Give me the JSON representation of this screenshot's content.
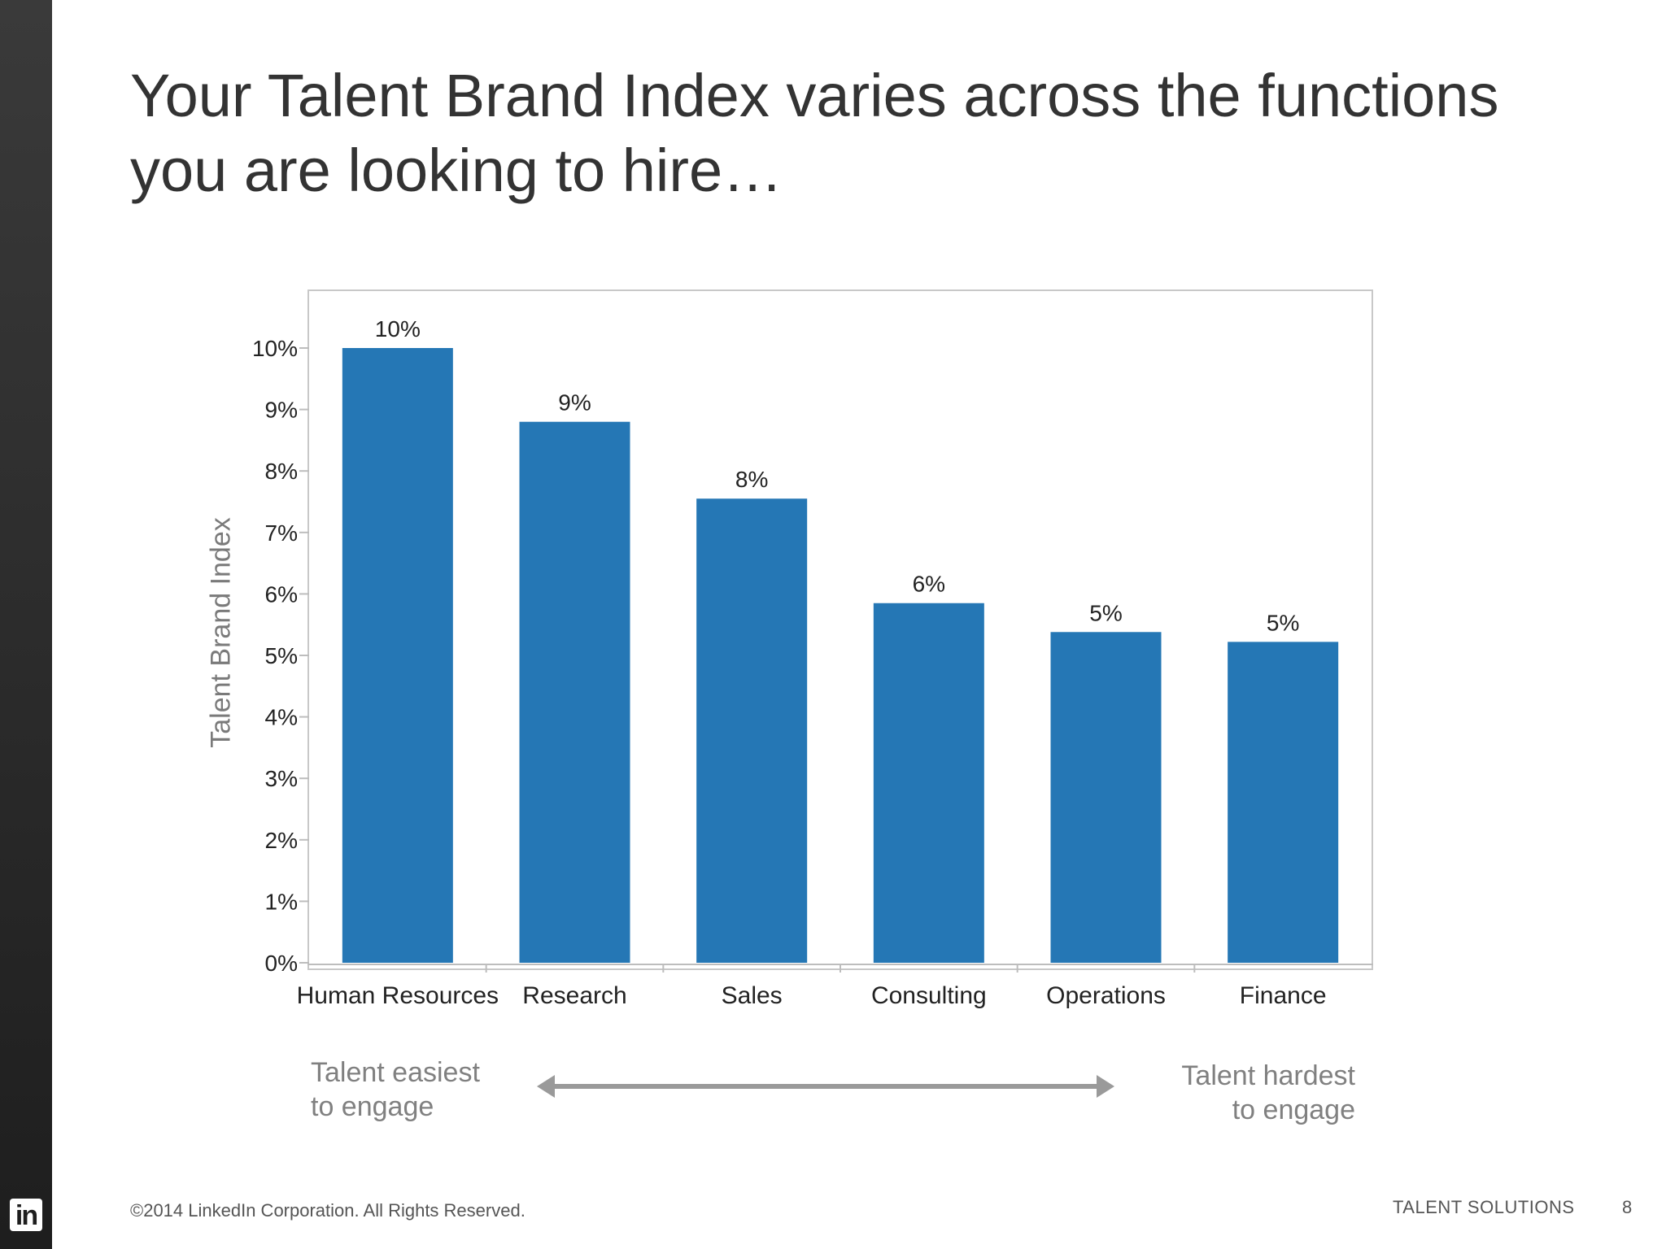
{
  "slide": {
    "title": "Your Talent Brand Index varies across the functions you are looking to hire…",
    "note_left": [
      "Talent easiest",
      "to engage"
    ],
    "note_right": [
      "Talent hardest",
      "to engage"
    ],
    "footer_copyright": "©2014 LinkedIn Corporation. All Rights Reserved.",
    "footer_brand": "TALENT SOLUTIONS",
    "page_number": "8",
    "logo_text": "in"
  },
  "chart_data": {
    "type": "bar",
    "ylabel": "Talent Brand Index",
    "categories": [
      "Human Resources",
      "Research",
      "Sales",
      "Consulting",
      "Operations",
      "Finance"
    ],
    "values": [
      10.0,
      8.8,
      7.55,
      5.85,
      5.38,
      5.22
    ],
    "data_labels": [
      "10%",
      "9%",
      "8%",
      "6%",
      "5%",
      "5%"
    ],
    "y_ticks": [
      "0%",
      "1%",
      "2%",
      "3%",
      "4%",
      "5%",
      "6%",
      "7%",
      "8%",
      "9%",
      "10%"
    ],
    "ylim": [
      0,
      10
    ],
    "grid": false,
    "colors": {
      "bar": "#2577b5",
      "axis": "#bdbdbd",
      "text": "#222222"
    }
  }
}
